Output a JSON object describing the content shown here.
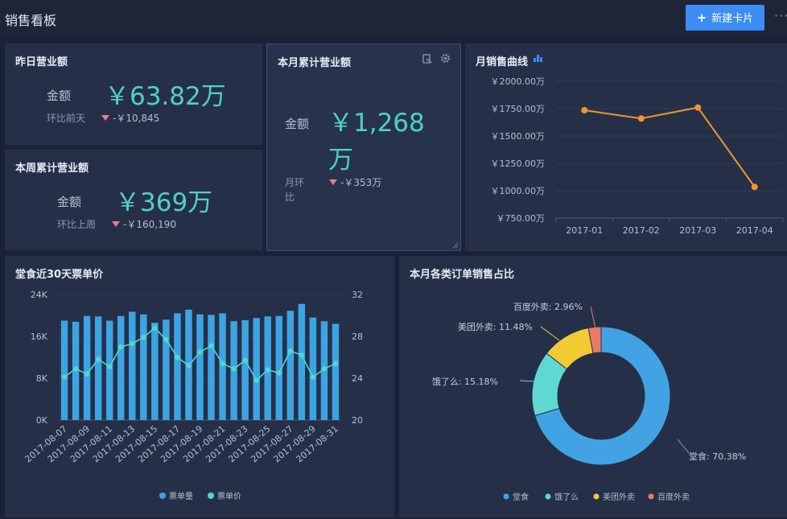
{
  "header": {
    "title": "销售看板",
    "new_card_label": "新建卡片",
    "more_label": "···"
  },
  "kpi": {
    "yesterday": {
      "title": "昨日营业额",
      "amount_label": "金额",
      "amount": "￥63.82万",
      "compare_label": "环比前天",
      "change": "-￥10,845"
    },
    "week": {
      "title": "本周累计营业额",
      "amount_label": "金额",
      "amount": "￥369万",
      "compare_label": "环比上周",
      "change": "-￥160,190"
    },
    "month": {
      "title": "本月累计营业额",
      "amount_label": "金额",
      "amount_line1": "￥1,268",
      "amount_line2": "万",
      "compare_label_line1": "月环",
      "compare_label_line2": "比",
      "change": "-￥353万"
    }
  },
  "monthly_chart": {
    "title": "月销售曲线",
    "color": "#f0962a",
    "chart_data": {
      "type": "line",
      "categories": [
        "2017-01",
        "2017-02",
        "2017-03",
        "2017-04"
      ],
      "values": [
        1735,
        1660,
        1760,
        1035
      ],
      "ylim": [
        750,
        2000
      ],
      "yticks": [
        750,
        1000,
        1250,
        1500,
        1750,
        2000
      ],
      "ytick_labels": [
        "￥750.00万",
        "￥1000.00万",
        "￥1250.00万",
        "￥1500.00万",
        "￥1750.00万",
        "￥2000.00万"
      ]
    }
  },
  "dine_chart": {
    "title": "堂食近30天票单价",
    "bar_color": "#3da4e4",
    "line_color": "#4fd8cf",
    "chart_data": {
      "type": "bar",
      "x": [
        "2017-08-07",
        "2017-08-08",
        "2017-08-09",
        "2017-08-10",
        "2017-08-11",
        "2017-08-12",
        "2017-08-13",
        "2017-08-14",
        "2017-08-15",
        "2017-08-16",
        "2017-08-17",
        "2017-08-18",
        "2017-08-19",
        "2017-08-20",
        "2017-08-21",
        "2017-08-22",
        "2017-08-23",
        "2017-08-24",
        "2017-08-25",
        "2017-08-26",
        "2017-08-27",
        "2017-08-28",
        "2017-08-29",
        "2017-08-30",
        "2017-08-31"
      ],
      "xtick_labels": [
        "2017-08-07",
        "2017-08-09",
        "2017-08-11",
        "2017-08-13",
        "2017-08-15",
        "2017-08-17",
        "2017-08-19",
        "2017-08-21",
        "2017-08-23",
        "2017-08-25",
        "2017-08-27",
        "2017-08-29",
        "2017-08-31"
      ],
      "left_ylim": [
        0,
        24000
      ],
      "left_ytick_labels": [
        "0K",
        "8K",
        "16K",
        "24K"
      ],
      "right_ylim": [
        20,
        32
      ],
      "right_ytick_labels": [
        "20",
        "24",
        "28",
        "32"
      ],
      "series": [
        {
          "name": "票单量",
          "axis": "left",
          "type": "bar",
          "values": [
            19000,
            18800,
            19900,
            19800,
            19000,
            19900,
            20700,
            20200,
            18600,
            19200,
            20400,
            21100,
            20200,
            20100,
            20400,
            18900,
            19100,
            19500,
            19800,
            19900,
            20900,
            22200,
            19600,
            18900,
            18400
          ]
        },
        {
          "name": "票单价",
          "axis": "right",
          "type": "line",
          "values": [
            24.1,
            24.9,
            24.4,
            25.8,
            25.1,
            27.0,
            27.3,
            27.9,
            28.8,
            27.7,
            26.0,
            25.2,
            26.5,
            27.1,
            25.4,
            24.9,
            25.7,
            23.8,
            24.8,
            24.5,
            26.6,
            26.2,
            24.1,
            24.9,
            25.4
          ]
        }
      ]
    }
  },
  "share_chart": {
    "title": "本月各类订单销售占比",
    "chart_data": {
      "type": "pie",
      "labels": [
        "堂食",
        "饿了么",
        "美团外卖",
        "百度外卖"
      ],
      "values": [
        70.38,
        15.18,
        11.48,
        2.96
      ],
      "slice_labels": [
        "堂食: 70.38%",
        "饿了么: 15.18%",
        "美团外卖: 11.48%",
        "百度外卖: 2.96%"
      ],
      "colors": [
        "#41a3e4",
        "#5fd8d4",
        "#f2cb33",
        "#ea7a67"
      ]
    }
  }
}
